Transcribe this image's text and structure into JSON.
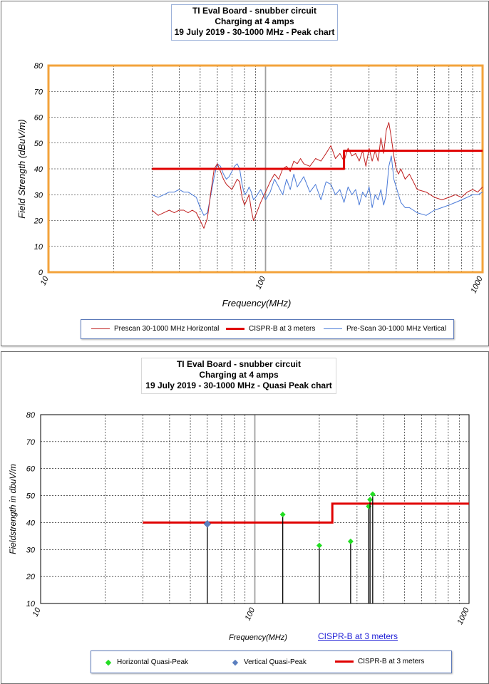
{
  "chart_data": [
    {
      "type": "line",
      "title": [
        "TI Eval Board - snubber circuit",
        "Charging at 4 amps",
        "19 July 2019 - 30-1000 MHz - Peak chart"
      ],
      "xlabel": "Frequency(MHz)",
      "ylabel": "Field Strength (dBuV/m)",
      "x_scale": "log",
      "xlim": [
        10,
        1000
      ],
      "ylim": [
        0,
        80
      ],
      "x_ticks": [
        "10",
        "100",
        "1000"
      ],
      "y_ticks": [
        0,
        10,
        20,
        30,
        40,
        50,
        60,
        70,
        80
      ],
      "grid": true,
      "legend": "bottom",
      "series": [
        {
          "name": "Prescan 30-1000 MHz Horizontal",
          "color": "#c02020",
          "x": [
            30,
            32,
            34,
            36,
            38,
            40,
            42,
            44,
            46,
            48,
            50,
            52,
            54,
            56,
            58,
            60,
            62,
            64,
            66,
            68,
            70,
            72,
            74,
            76,
            78,
            80,
            82,
            84,
            86,
            88,
            90,
            95,
            100,
            105,
            110,
            115,
            120,
            125,
            130,
            135,
            140,
            145,
            150,
            160,
            170,
            180,
            190,
            200,
            210,
            220,
            230,
            240,
            250,
            260,
            270,
            280,
            290,
            300,
            310,
            320,
            330,
            340,
            350,
            360,
            370,
            380,
            390,
            400,
            410,
            420,
            440,
            460,
            480,
            500,
            550,
            600,
            650,
            700,
            750,
            800,
            850,
            900,
            950,
            1000
          ],
          "y": [
            24,
            22,
            23,
            24,
            23,
            24,
            24,
            23,
            24,
            23,
            20,
            17,
            21,
            31,
            40,
            42,
            39,
            36,
            34,
            33,
            32,
            34,
            36,
            35,
            29,
            26,
            28,
            30,
            24,
            20,
            22,
            27,
            31,
            35,
            38,
            36,
            40,
            41,
            39,
            43,
            42,
            44,
            42,
            41,
            44,
            43,
            46,
            49,
            44,
            46,
            43,
            48,
            45,
            46,
            43,
            47,
            41,
            48,
            43,
            47,
            43,
            52,
            46,
            55,
            58,
            52,
            45,
            40,
            38,
            40,
            36,
            38,
            35,
            32,
            31,
            29,
            28,
            29,
            30,
            29,
            31,
            32,
            31,
            33
          ]
        },
        {
          "name": "CISPR-B at 3 meters",
          "color": "#e00000",
          "x": [
            30,
            230,
            230,
            1000
          ],
          "y": [
            40,
            40,
            47,
            47
          ]
        },
        {
          "name": "Pre-Scan 30-1000 MHz Vertical",
          "color": "#4a7ad8",
          "x": [
            30,
            32,
            34,
            36,
            38,
            40,
            42,
            44,
            46,
            48,
            50,
            52,
            54,
            56,
            58,
            60,
            62,
            64,
            66,
            68,
            70,
            72,
            74,
            76,
            78,
            80,
            82,
            84,
            86,
            88,
            90,
            95,
            100,
            105,
            110,
            115,
            120,
            125,
            130,
            135,
            140,
            150,
            160,
            170,
            180,
            190,
            200,
            210,
            220,
            230,
            240,
            250,
            260,
            270,
            280,
            290,
            300,
            310,
            320,
            330,
            340,
            350,
            360,
            370,
            380,
            390,
            400,
            420,
            440,
            460,
            480,
            500,
            550,
            600,
            650,
            700,
            750,
            800,
            850,
            900,
            950,
            1000
          ],
          "y": [
            30,
            29,
            30,
            31,
            31,
            32,
            31,
            31,
            30,
            29,
            25,
            22,
            23,
            30,
            37,
            42,
            41,
            38,
            36,
            37,
            39,
            41,
            42,
            40,
            34,
            30,
            31,
            33,
            31,
            28,
            29,
            32,
            28,
            31,
            36,
            33,
            30,
            36,
            32,
            38,
            33,
            37,
            31,
            34,
            28,
            35,
            34,
            30,
            32,
            27,
            33,
            30,
            32,
            26,
            31,
            29,
            33,
            25,
            30,
            28,
            32,
            26,
            30,
            41,
            45,
            36,
            33,
            27,
            25,
            25,
            24,
            23,
            22,
            24,
            25,
            26,
            27,
            28,
            29,
            30,
            30,
            31
          ]
        }
      ]
    },
    {
      "type": "scatter",
      "title": [
        "TI Eval Board - snubber circuit",
        "Charging at 4 amps",
        "19 July 2019 - 30-1000 MHz - Quasi Peak chart"
      ],
      "xlabel": "Frequency(MHz)",
      "ylabel": "Fieldstrength in dbuV/m",
      "x_scale": "log",
      "xlim": [
        10,
        1000
      ],
      "ylim": [
        10,
        80
      ],
      "x_ticks": [
        "10",
        "100",
        "1000"
      ],
      "y_ticks": [
        10,
        20,
        30,
        40,
        50,
        60,
        70,
        80
      ],
      "grid": true,
      "legend": "bottom",
      "series": [
        {
          "name": "Horizontal Quasi-Peak",
          "color": "#22dd22",
          "marker": "diamond",
          "x": [
            135,
            200,
            280,
            340,
            345,
            355
          ],
          "y": [
            43,
            31.5,
            33,
            46,
            48.5,
            50.5
          ]
        },
        {
          "name": "Vertical Quasi-Peak",
          "color": "#5b7fbf",
          "marker": "diamond",
          "x": [
            60
          ],
          "y": [
            39.5
          ]
        },
        {
          "name": "CISPR-B at 3 meters",
          "color": "#e00000",
          "x": [
            30,
            230,
            230,
            1000
          ],
          "y": [
            40,
            40,
            47,
            47
          ]
        }
      ],
      "annotation": "CISPR-B at  3 meters"
    }
  ]
}
